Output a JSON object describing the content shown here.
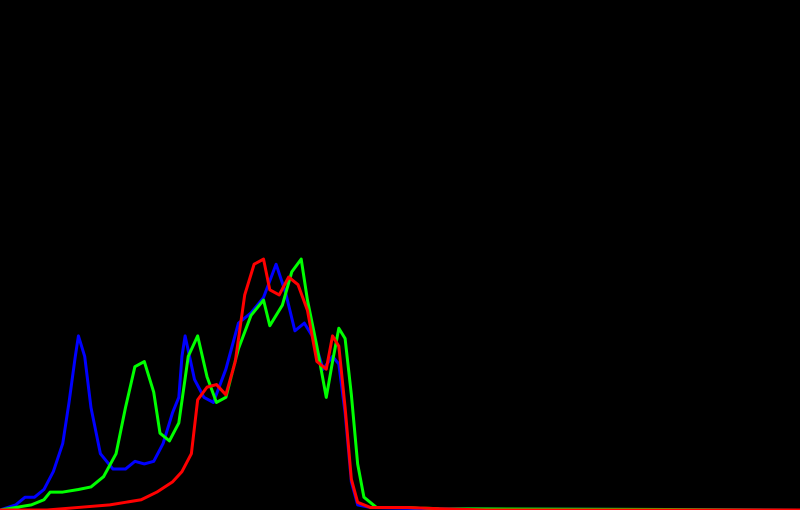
{
  "chart_data": {
    "type": "line",
    "title": "",
    "xlabel": "",
    "ylabel": "",
    "grid": false,
    "legend": "none",
    "background": "#000000",
    "x_range": [
      0,
      255
    ],
    "y_range": [
      0,
      1
    ],
    "series": [
      {
        "color": "#0000ff",
        "points": [
          [
            0,
            0.0
          ],
          [
            5,
            0.02
          ],
          [
            8,
            0.05
          ],
          [
            11,
            0.05
          ],
          [
            14,
            0.08
          ],
          [
            17,
            0.15
          ],
          [
            20,
            0.26
          ],
          [
            22,
            0.42
          ],
          [
            24,
            0.6
          ],
          [
            25,
            0.68
          ],
          [
            27,
            0.6
          ],
          [
            29,
            0.4
          ],
          [
            32,
            0.22
          ],
          [
            36,
            0.16
          ],
          [
            40,
            0.16
          ],
          [
            43,
            0.19
          ],
          [
            46,
            0.18
          ],
          [
            49,
            0.19
          ],
          [
            52,
            0.26
          ],
          [
            55,
            0.38
          ],
          [
            57,
            0.44
          ],
          [
            58,
            0.6
          ],
          [
            59,
            0.68
          ],
          [
            62,
            0.51
          ],
          [
            65,
            0.44
          ],
          [
            68,
            0.42
          ],
          [
            72,
            0.55
          ],
          [
            76,
            0.73
          ],
          [
            80,
            0.77
          ],
          [
            84,
            0.83
          ],
          [
            88,
            0.96
          ],
          [
            91,
            0.85
          ],
          [
            94,
            0.7
          ],
          [
            97,
            0.73
          ],
          [
            100,
            0.67
          ],
          [
            103,
            0.55
          ],
          [
            106,
            0.6
          ],
          [
            108,
            0.57
          ],
          [
            110,
            0.38
          ],
          [
            112,
            0.11
          ],
          [
            114,
            0.02
          ],
          [
            118,
            0.01
          ],
          [
            135,
            0.005
          ],
          [
            255,
            0.0
          ]
        ]
      },
      {
        "color": "#00ff00",
        "points": [
          [
            0,
            0.0
          ],
          [
            5,
            0.01
          ],
          [
            10,
            0.02
          ],
          [
            14,
            0.04
          ],
          [
            16,
            0.07
          ],
          [
            20,
            0.07
          ],
          [
            25,
            0.08
          ],
          [
            29,
            0.09
          ],
          [
            33,
            0.13
          ],
          [
            37,
            0.22
          ],
          [
            40,
            0.4
          ],
          [
            43,
            0.56
          ],
          [
            46,
            0.58
          ],
          [
            49,
            0.46
          ],
          [
            51,
            0.3
          ],
          [
            54,
            0.27
          ],
          [
            57,
            0.34
          ],
          [
            60,
            0.6
          ],
          [
            63,
            0.68
          ],
          [
            66,
            0.52
          ],
          [
            69,
            0.42
          ],
          [
            72,
            0.44
          ],
          [
            76,
            0.63
          ],
          [
            80,
            0.76
          ],
          [
            84,
            0.82
          ],
          [
            86,
            0.72
          ],
          [
            90,
            0.8
          ],
          [
            93,
            0.93
          ],
          [
            96,
            0.98
          ],
          [
            98,
            0.82
          ],
          [
            101,
            0.64
          ],
          [
            104,
            0.44
          ],
          [
            106,
            0.58
          ],
          [
            108,
            0.71
          ],
          [
            110,
            0.67
          ],
          [
            112,
            0.45
          ],
          [
            114,
            0.18
          ],
          [
            116,
            0.05
          ],
          [
            120,
            0.01
          ],
          [
            130,
            0.01
          ],
          [
            140,
            0.005
          ],
          [
            255,
            0.0
          ]
        ]
      },
      {
        "color": "#ff0000",
        "points": [
          [
            0,
            0.0
          ],
          [
            15,
            0.0
          ],
          [
            25,
            0.01
          ],
          [
            35,
            0.02
          ],
          [
            40,
            0.03
          ],
          [
            45,
            0.04
          ],
          [
            50,
            0.07
          ],
          [
            55,
            0.11
          ],
          [
            58,
            0.15
          ],
          [
            61,
            0.22
          ],
          [
            63,
            0.43
          ],
          [
            66,
            0.48
          ],
          [
            69,
            0.49
          ],
          [
            72,
            0.45
          ],
          [
            75,
            0.58
          ],
          [
            78,
            0.84
          ],
          [
            81,
            0.96
          ],
          [
            84,
            0.98
          ],
          [
            86,
            0.86
          ],
          [
            89,
            0.84
          ],
          [
            92,
            0.91
          ],
          [
            95,
            0.88
          ],
          [
            98,
            0.78
          ],
          [
            101,
            0.58
          ],
          [
            104,
            0.55
          ],
          [
            106,
            0.68
          ],
          [
            108,
            0.64
          ],
          [
            110,
            0.4
          ],
          [
            112,
            0.12
          ],
          [
            114,
            0.03
          ],
          [
            118,
            0.01
          ],
          [
            130,
            0.01
          ],
          [
            140,
            0.005
          ],
          [
            155,
            0.0
          ],
          [
            255,
            0.0
          ]
        ]
      }
    ]
  }
}
